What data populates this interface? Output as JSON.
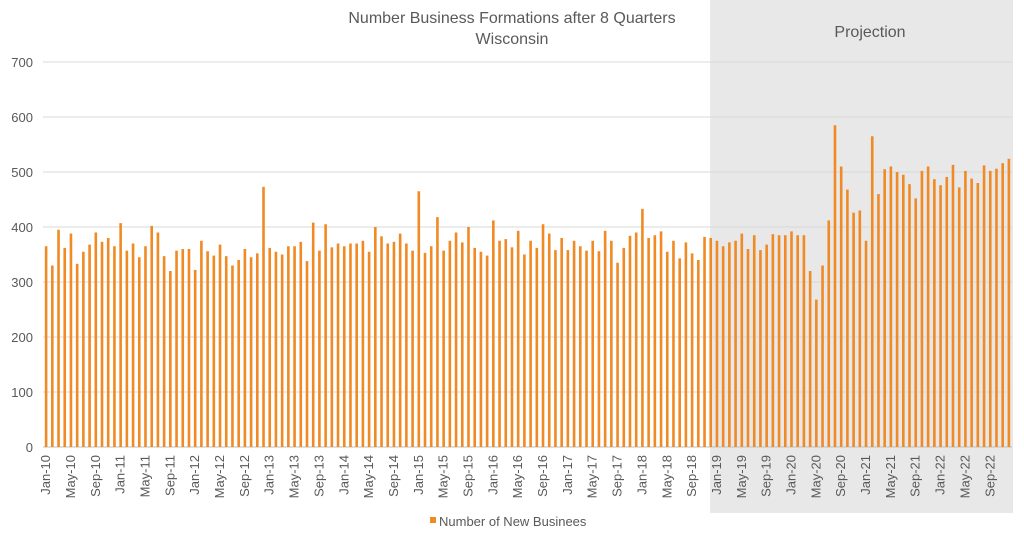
{
  "chart_data": {
    "type": "bar",
    "title": "Number Business Formations after 8 Quarters",
    "subtitle": "Wisconsin",
    "projection_label": "Projection",
    "projection_start_index": 108,
    "ylim": [
      0,
      700
    ],
    "yticks": [
      0,
      100,
      200,
      300,
      400,
      500,
      600,
      700
    ],
    "grid": true,
    "legend_position": "bottom",
    "colors": {
      "bar": "#F08A24",
      "projection_shade": "#E8E8E8",
      "grid": "#D9D9D9",
      "text": "#595959"
    },
    "x_tick_labels": [
      "Jan-10",
      "May-10",
      "Sep-10",
      "Jan-11",
      "May-11",
      "Sep-11",
      "Jan-12",
      "May-12",
      "Sep-12",
      "Jan-13",
      "May-13",
      "Sep-13",
      "Jan-14",
      "May-14",
      "Sep-14",
      "Jan-15",
      "May-15",
      "Sep-15",
      "Jan-16",
      "May-16",
      "Sep-16",
      "Jan-17",
      "May-17",
      "Sep-17",
      "Jan-18",
      "May-18",
      "Sep-18",
      "Jan-19",
      "May-19",
      "Sep-19",
      "Jan-20",
      "May-20",
      "Sep-20",
      "Jan-21",
      "May-21",
      "Sep-21",
      "Jan-22",
      "May-22",
      "Sep-22"
    ],
    "x_tick_every": 4,
    "series": [
      {
        "name": "Number of New Businees",
        "values": [
          365,
          330,
          395,
          362,
          388,
          333,
          355,
          368,
          390,
          373,
          380,
          365,
          407,
          357,
          370,
          345,
          365,
          402,
          390,
          347,
          320,
          357,
          360,
          360,
          322,
          375,
          356,
          348,
          368,
          347,
          330,
          340,
          360,
          345,
          352,
          473,
          362,
          355,
          350,
          365,
          365,
          373,
          338,
          408,
          357,
          405,
          363,
          370,
          365,
          370,
          370,
          375,
          355,
          400,
          383,
          370,
          373,
          388,
          370,
          357,
          465,
          353,
          365,
          418,
          357,
          375,
          390,
          372,
          400,
          362,
          355,
          348,
          412,
          375,
          378,
          363,
          393,
          350,
          375,
          362,
          405,
          388,
          358,
          380,
          358,
          375,
          365,
          357,
          375,
          356,
          393,
          375,
          335,
          362,
          384,
          390,
          433,
          380,
          385,
          392,
          355,
          375,
          343,
          372,
          352,
          340,
          382,
          380,
          375,
          365,
          372,
          375,
          388,
          360,
          385,
          358,
          368,
          387,
          385,
          385,
          392,
          385,
          385,
          320,
          268,
          330,
          412,
          585,
          510,
          468,
          426,
          430,
          375,
          565,
          460,
          505,
          510,
          500,
          495,
          478,
          452,
          502,
          510,
          487,
          476,
          491,
          513,
          472,
          502,
          488,
          480,
          512,
          502,
          506,
          516,
          524
        ]
      }
    ]
  }
}
